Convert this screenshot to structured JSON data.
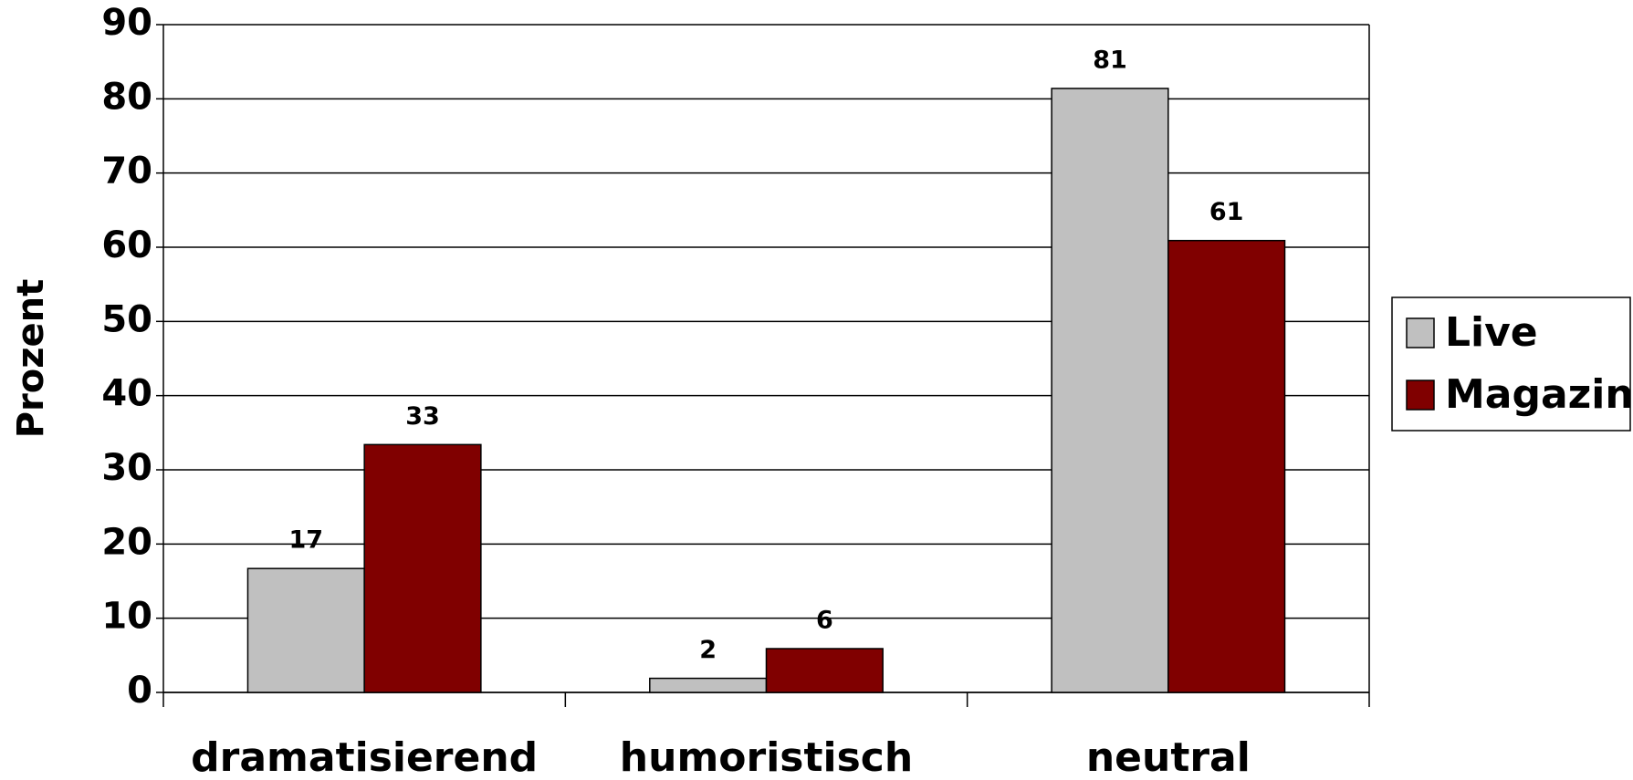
{
  "chart_data": {
    "type": "bar",
    "y_label": "Prozent",
    "categories": [
      "dramatisierend",
      "humoristisch",
      "neutral"
    ],
    "series": [
      {
        "name": "Live",
        "color": "#c0c0c0",
        "values": [
          16.7,
          1.9,
          81.4
        ],
        "value_labels": [
          "17",
          "2",
          "81"
        ]
      },
      {
        "name": "Magazin",
        "color": "#800000",
        "values": [
          33.4,
          5.9,
          60.9
        ],
        "value_labels": [
          "33",
          "6",
          "61"
        ]
      }
    ],
    "ylim": [
      0,
      90
    ],
    "yticks": [
      0,
      10,
      20,
      30,
      40,
      50,
      60,
      70,
      80,
      90
    ],
    "grid": true,
    "legend": "right"
  }
}
